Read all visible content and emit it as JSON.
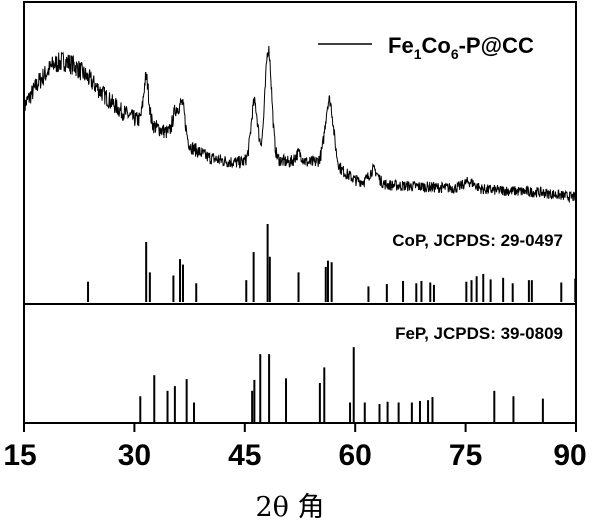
{
  "chart_data": {
    "type": "line",
    "xlabel": "2θ 角",
    "xlim": [
      15,
      90
    ],
    "xticks": [
      15,
      30,
      45,
      60,
      75,
      90
    ],
    "tick_labels": [
      "15",
      "30",
      "45",
      "60",
      "75",
      "90"
    ],
    "grid": false,
    "legend_position": "top-right",
    "series": [
      {
        "name": "Fe1Co6-P@CC",
        "legend_parts": {
          "el1": "Fe",
          "sub1": "1",
          "el2": "Co",
          "sub2": "6",
          "rest": "-P@CC"
        },
        "color": "#000000",
        "background": [
          [
            15,
            0.62
          ],
          [
            17,
            0.76
          ],
          [
            19,
            0.86
          ],
          [
            20.5,
            0.88
          ],
          [
            22,
            0.85
          ],
          [
            24,
            0.77
          ],
          [
            26,
            0.68
          ],
          [
            28,
            0.6
          ],
          [
            30,
            0.55
          ],
          [
            32,
            0.52
          ],
          [
            34,
            0.48
          ],
          [
            36,
            0.44
          ],
          [
            38,
            0.38
          ],
          [
            40,
            0.33
          ],
          [
            42,
            0.31
          ],
          [
            44,
            0.3
          ],
          [
            46,
            0.31
          ],
          [
            48,
            0.33
          ],
          [
            50,
            0.31
          ],
          [
            52,
            0.29
          ],
          [
            54,
            0.3
          ],
          [
            56,
            0.31
          ],
          [
            58,
            0.26
          ],
          [
            60,
            0.2
          ],
          [
            62,
            0.18
          ],
          [
            65,
            0.17
          ],
          [
            70,
            0.16
          ],
          [
            75,
            0.15
          ],
          [
            80,
            0.14
          ],
          [
            85,
            0.13
          ],
          [
            90,
            0.1
          ]
        ],
        "peaks": [
          {
            "x": 31.6,
            "height": 0.26,
            "width": 0.35
          },
          {
            "x": 35.6,
            "height": 0.14,
            "width": 0.4
          },
          {
            "x": 36.5,
            "height": 0.2,
            "width": 0.4
          },
          {
            "x": 46.3,
            "height": 0.33,
            "width": 0.45
          },
          {
            "x": 48.2,
            "height": 0.62,
            "width": 0.45
          },
          {
            "x": 52.3,
            "height": 0.06,
            "width": 0.5
          },
          {
            "x": 56.5,
            "height": 0.36,
            "width": 0.55
          },
          {
            "x": 62.5,
            "height": 0.08,
            "width": 0.6
          },
          {
            "x": 75.5,
            "height": 0.04,
            "width": 0.8
          }
        ],
        "noise_amplitude": 0.05
      }
    ],
    "reference_patterns": [
      {
        "label": "CoP, JCPDS: 29-0497",
        "lines": [
          {
            "x": 23.7,
            "intensity": 0.26
          },
          {
            "x": 31.6,
            "intensity": 0.77
          },
          {
            "x": 32.1,
            "intensity": 0.38
          },
          {
            "x": 35.3,
            "intensity": 0.34
          },
          {
            "x": 36.2,
            "intensity": 0.55
          },
          {
            "x": 36.6,
            "intensity": 0.48
          },
          {
            "x": 38.4,
            "intensity": 0.24
          },
          {
            "x": 45.2,
            "intensity": 0.28
          },
          {
            "x": 46.2,
            "intensity": 0.64
          },
          {
            "x": 48.1,
            "intensity": 1.0
          },
          {
            "x": 48.4,
            "intensity": 0.58
          },
          {
            "x": 52.3,
            "intensity": 0.38
          },
          {
            "x": 56.0,
            "intensity": 0.45
          },
          {
            "x": 56.3,
            "intensity": 0.53
          },
          {
            "x": 56.8,
            "intensity": 0.51
          },
          {
            "x": 61.8,
            "intensity": 0.2
          },
          {
            "x": 64.3,
            "intensity": 0.23
          },
          {
            "x": 66.5,
            "intensity": 0.27
          },
          {
            "x": 68.3,
            "intensity": 0.24
          },
          {
            "x": 69.0,
            "intensity": 0.27
          },
          {
            "x": 70.2,
            "intensity": 0.25
          },
          {
            "x": 70.7,
            "intensity": 0.22
          },
          {
            "x": 75.1,
            "intensity": 0.26
          },
          {
            "x": 75.8,
            "intensity": 0.28
          },
          {
            "x": 76.5,
            "intensity": 0.33
          },
          {
            "x": 77.4,
            "intensity": 0.36
          },
          {
            "x": 78.4,
            "intensity": 0.29
          },
          {
            "x": 80.1,
            "intensity": 0.31
          },
          {
            "x": 81.4,
            "intensity": 0.24
          },
          {
            "x": 83.6,
            "intensity": 0.28
          },
          {
            "x": 84.0,
            "intensity": 0.28
          },
          {
            "x": 88.0,
            "intensity": 0.25
          },
          {
            "x": 89.9,
            "intensity": 0.3
          }
        ]
      },
      {
        "label": "FeP, JCPDS: 39-0809",
        "lines": [
          {
            "x": 30.8,
            "intensity": 0.33
          },
          {
            "x": 32.7,
            "intensity": 0.6
          },
          {
            "x": 34.5,
            "intensity": 0.4
          },
          {
            "x": 35.5,
            "intensity": 0.46
          },
          {
            "x": 37.1,
            "intensity": 0.55
          },
          {
            "x": 38.1,
            "intensity": 0.25
          },
          {
            "x": 46.0,
            "intensity": 0.4
          },
          {
            "x": 46.3,
            "intensity": 0.54
          },
          {
            "x": 47.1,
            "intensity": 0.87
          },
          {
            "x": 48.3,
            "intensity": 0.87
          },
          {
            "x": 50.6,
            "intensity": 0.56
          },
          {
            "x": 55.2,
            "intensity": 0.5
          },
          {
            "x": 55.8,
            "intensity": 0.7
          },
          {
            "x": 59.3,
            "intensity": 0.25
          },
          {
            "x": 59.8,
            "intensity": 0.96
          },
          {
            "x": 61.3,
            "intensity": 0.25
          },
          {
            "x": 63.3,
            "intensity": 0.23
          },
          {
            "x": 64.4,
            "intensity": 0.26
          },
          {
            "x": 65.9,
            "intensity": 0.25
          },
          {
            "x": 67.7,
            "intensity": 0.25
          },
          {
            "x": 68.8,
            "intensity": 0.27
          },
          {
            "x": 69.9,
            "intensity": 0.28
          },
          {
            "x": 70.5,
            "intensity": 0.32
          },
          {
            "x": 78.9,
            "intensity": 0.4
          },
          {
            "x": 81.5,
            "intensity": 0.33
          },
          {
            "x": 85.5,
            "intensity": 0.3
          }
        ]
      }
    ]
  }
}
